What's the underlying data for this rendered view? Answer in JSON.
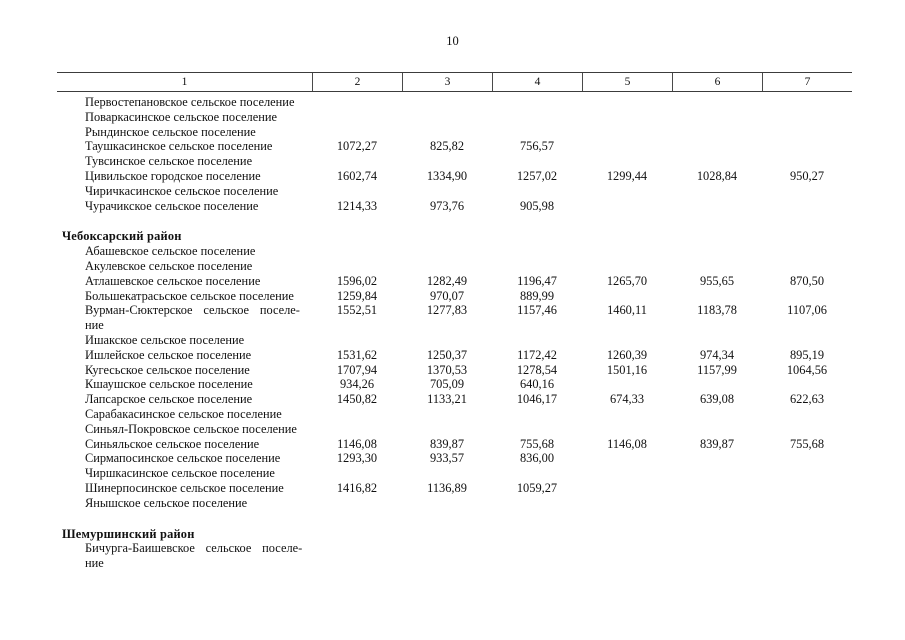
{
  "page": {
    "number": "10"
  },
  "table": {
    "header": {
      "columns": [
        "1",
        "2",
        "3",
        "4",
        "5",
        "6",
        "7"
      ]
    },
    "groups": [
      {
        "district": "",
        "rows": [
          {
            "name_lines": [
              "Первостепановское сельское поселение"
            ],
            "values": [
              "",
              "",
              "",
              "",
              "",
              ""
            ]
          },
          {
            "name_lines": [
              "Поваркасинское сельское поселение"
            ],
            "values": [
              "",
              "",
              "",
              "",
              "",
              ""
            ]
          },
          {
            "name_lines": [
              "Рындинское сельское поселение"
            ],
            "values": [
              "",
              "",
              "",
              "",
              "",
              ""
            ]
          },
          {
            "name_lines": [
              "Таушкасинское сельское поселение"
            ],
            "values": [
              "1072,27",
              "825,82",
              "756,57",
              "",
              "",
              ""
            ]
          },
          {
            "name_lines": [
              "Тувсинское сельское поселение"
            ],
            "values": [
              "",
              "",
              "",
              "",
              "",
              ""
            ]
          },
          {
            "name_lines": [
              "Цивильское городское поселение"
            ],
            "values": [
              "1602,74",
              "1334,90",
              "1257,02",
              "1299,44",
              "1028,84",
              "950,27"
            ]
          },
          {
            "name_lines": [
              "Чиричкасинское сельское поселение"
            ],
            "values": [
              "",
              "",
              "",
              "",
              "",
              ""
            ]
          },
          {
            "name_lines": [
              "Чурачикское сельское поселение"
            ],
            "values": [
              "1214,33",
              "973,76",
              "905,98",
              "",
              "",
              ""
            ]
          }
        ]
      },
      {
        "district": "Чебоксарский район",
        "rows": [
          {
            "name_lines": [
              "Абашевское сельское поселение"
            ],
            "values": [
              "",
              "",
              "",
              "",
              "",
              ""
            ]
          },
          {
            "name_lines": [
              "Акулевское сельское поселение"
            ],
            "values": [
              "",
              "",
              "",
              "",
              "",
              ""
            ]
          },
          {
            "name_lines": [
              "Атлашевское сельское поселение"
            ],
            "values": [
              "1596,02",
              "1282,49",
              "1196,47",
              "1265,70",
              "955,65",
              "870,50"
            ]
          },
          {
            "name_lines": [
              "Большекатрасьское сельское поселение"
            ],
            "values": [
              "1259,84",
              "970,07",
              "889,99",
              "",
              "",
              ""
            ]
          },
          {
            "name_lines": [
              "Вурман-Сюктерское сельское поселе-",
              "ние"
            ],
            "values": [
              "1552,51",
              "1277,83",
              "1157,46",
              "1460,11",
              "1183,78",
              "1107,06"
            ]
          },
          {
            "name_lines": [
              "Ишакское сельское поселение"
            ],
            "values": [
              "",
              "",
              "",
              "",
              "",
              ""
            ]
          },
          {
            "name_lines": [
              "Ишлейское сельское поселение"
            ],
            "values": [
              "1531,62",
              "1250,37",
              "1172,42",
              "1260,39",
              "974,34",
              "895,19"
            ]
          },
          {
            "name_lines": [
              "Кугесьское сельское поселение"
            ],
            "values": [
              "1707,94",
              "1370,53",
              "1278,54",
              "1501,16",
              "1157,99",
              "1064,56"
            ]
          },
          {
            "name_lines": [
              "Кшаушское сельское поселение"
            ],
            "values": [
              "934,26",
              "705,09",
              "640,16",
              "",
              "",
              ""
            ]
          },
          {
            "name_lines": [
              "Лапсарское сельское поселение"
            ],
            "values": [
              "1450,82",
              "1133,21",
              "1046,17",
              "674,33",
              "639,08",
              "622,63"
            ]
          },
          {
            "name_lines": [
              "Сарабакасинское сельское поселение"
            ],
            "values": [
              "",
              "",
              "",
              "",
              "",
              ""
            ]
          },
          {
            "name_lines": [
              "Синьял-Покровское сельское поселение"
            ],
            "values": [
              "",
              "",
              "",
              "",
              "",
              ""
            ]
          },
          {
            "name_lines": [
              "Синьяльское сельское поселение"
            ],
            "values": [
              "1146,08",
              "839,87",
              "755,68",
              "1146,08",
              "839,87",
              "755,68"
            ]
          },
          {
            "name_lines": [
              "Сирмапосинское сельское поселение"
            ],
            "values": [
              "1293,30",
              "933,57",
              "836,00",
              "",
              "",
              ""
            ]
          },
          {
            "name_lines": [
              "Чиршкасинское сельское поселение"
            ],
            "values": [
              "",
              "",
              "",
              "",
              "",
              ""
            ]
          },
          {
            "name_lines": [
              "Шинерпосинское сельское поселение"
            ],
            "values": [
              "1416,82",
              "1136,89",
              "1059,27",
              "",
              "",
              ""
            ]
          },
          {
            "name_lines": [
              "Янышское сельское поселение"
            ],
            "values": [
              "",
              "",
              "",
              "",
              "",
              ""
            ]
          }
        ]
      },
      {
        "district": "Шемуршинский район",
        "rows": [
          {
            "name_lines": [
              "Бичурга-Баишевское сельское поселе-",
              "ние"
            ],
            "values": [
              "",
              "",
              "",
              "",
              "",
              ""
            ]
          }
        ]
      }
    ]
  }
}
